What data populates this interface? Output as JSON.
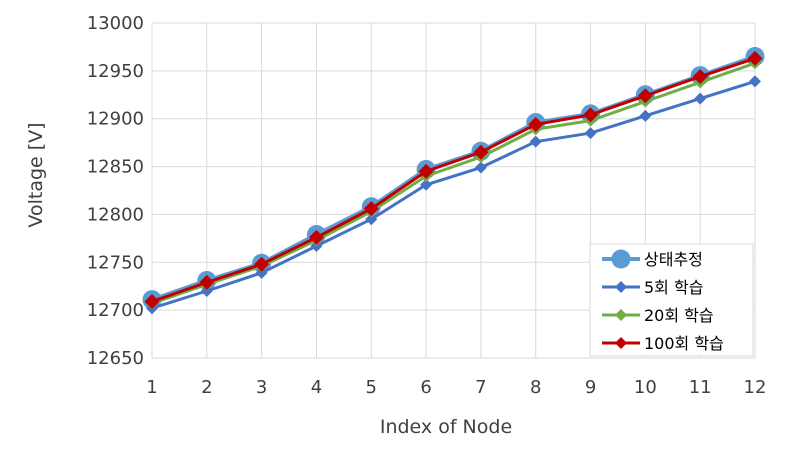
{
  "chart_data": {
    "type": "line",
    "title": "",
    "xlabel": "Index of Node",
    "ylabel": "Voltage [V]",
    "x": [
      1,
      2,
      3,
      4,
      5,
      6,
      7,
      8,
      9,
      10,
      11,
      12
    ],
    "x_tick_labels": [
      "1",
      "2",
      "3",
      "4",
      "5",
      "6",
      "7",
      "8",
      "9",
      "10",
      "11",
      "12"
    ],
    "ylim": [
      12650,
      13000
    ],
    "y_ticks": [
      12650,
      12700,
      12750,
      12800,
      12850,
      12900,
      12950,
      13000
    ],
    "y_tick_labels": [
      "12650",
      "12700",
      "12750",
      "12800",
      "12850",
      "12900",
      "12950",
      "13000"
    ],
    "grid": true,
    "legend_position": "bottom-right",
    "series": [
      {
        "name": "상태추정",
        "color": "#5B9BD5",
        "marker": "circle",
        "values": [
          12711,
          12731,
          12749,
          12779,
          12808,
          12847,
          12866,
          12896,
          12905,
          12925,
          12945,
          12965
        ]
      },
      {
        "name": "5회 학습",
        "color": "#4472C4",
        "marker": "diamond",
        "values": [
          12702,
          12720,
          12739,
          12767,
          12795,
          12831,
          12849,
          12876,
          12885,
          12903,
          12921,
          12939
        ]
      },
      {
        "name": "20회 학습",
        "color": "#70AD47",
        "marker": "diamond",
        "values": [
          12707,
          12727,
          12746,
          12773,
          12803,
          12840,
          12860,
          12889,
          12898,
          12918,
          12938,
          12958
        ]
      },
      {
        "name": "100회 학습",
        "color": "#C00000",
        "marker": "diamond",
        "values": [
          12709,
          12729,
          12748,
          12776,
          12806,
          12845,
          12865,
          12894,
          12904,
          12924,
          12944,
          12963
        ]
      }
    ]
  }
}
